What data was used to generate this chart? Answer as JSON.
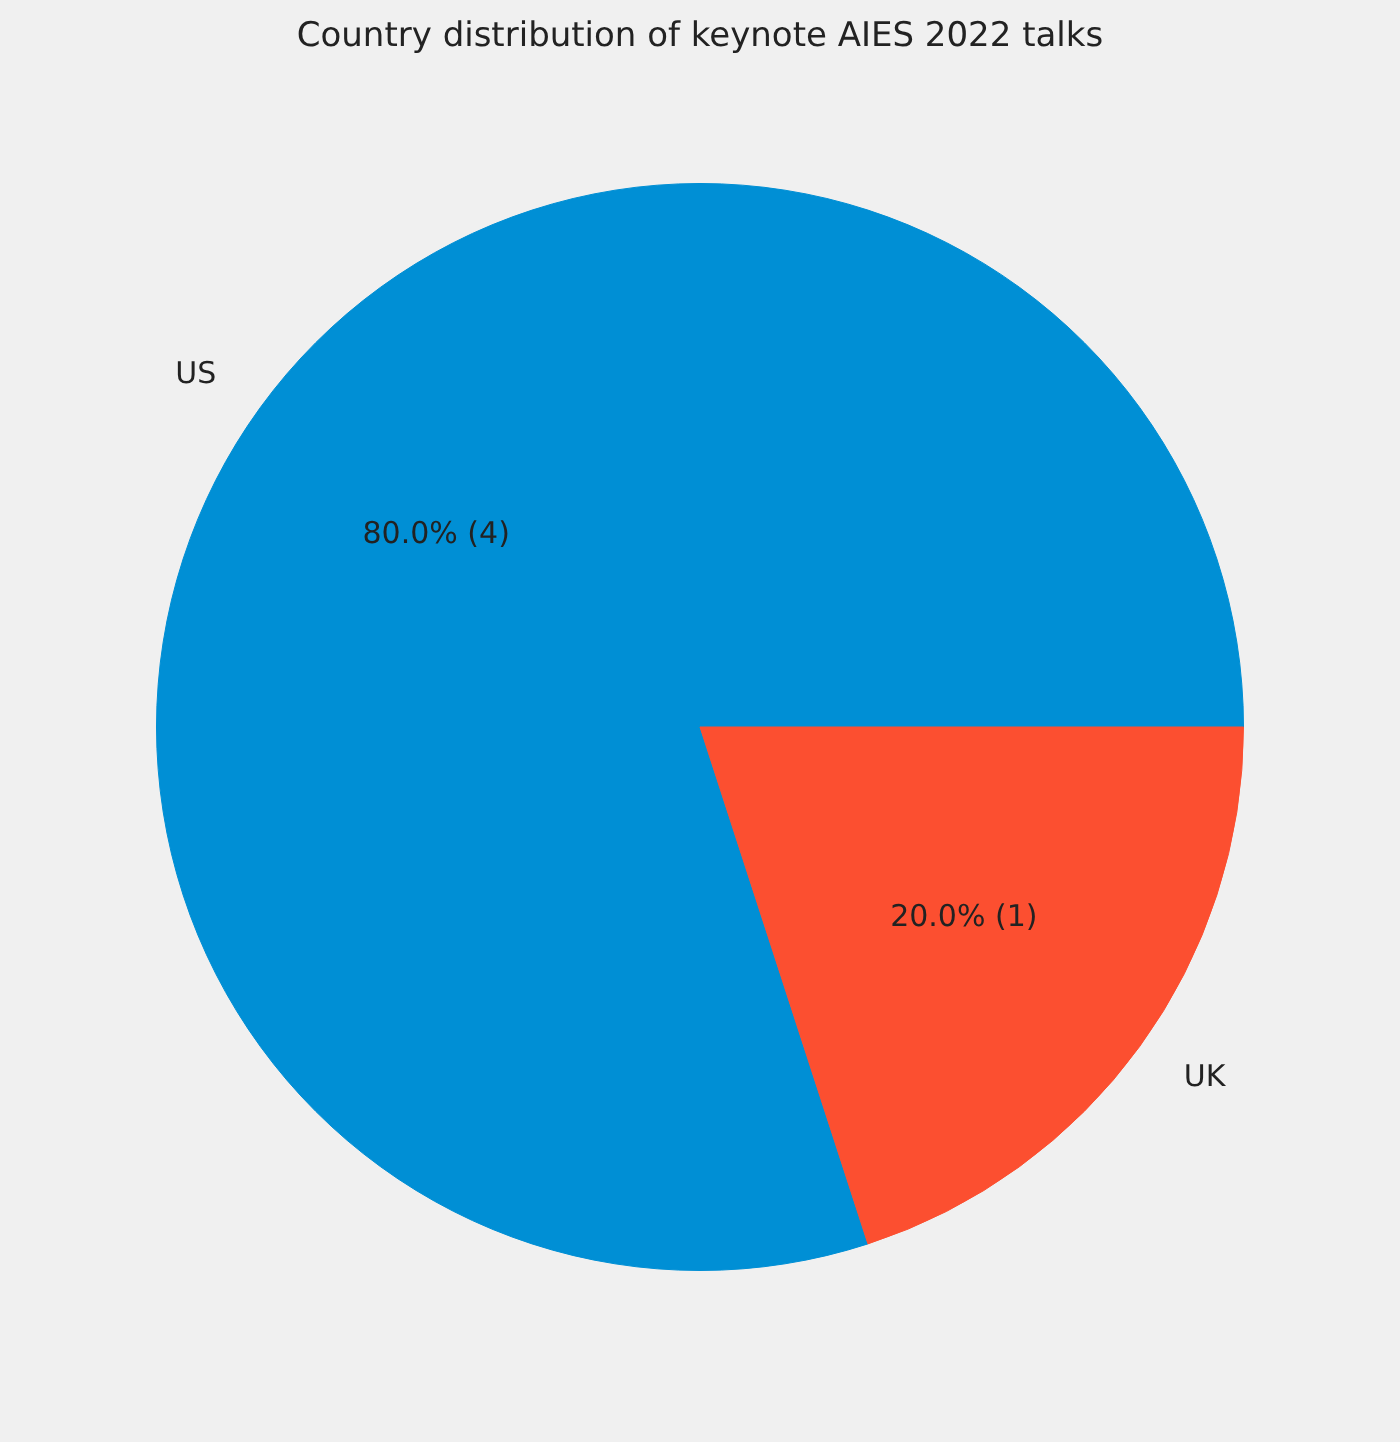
{
  "chart_data": {
    "type": "pie",
    "title": "Country distribution of keynote AIES 2022 talks",
    "categories": [
      "US",
      "UK"
    ],
    "values": [
      4,
      1
    ],
    "colors": [
      "#008fd5",
      "#fc4f30"
    ],
    "value_labels": [
      "80.0% (4)",
      "20.0% (1)"
    ],
    "legend": false
  }
}
